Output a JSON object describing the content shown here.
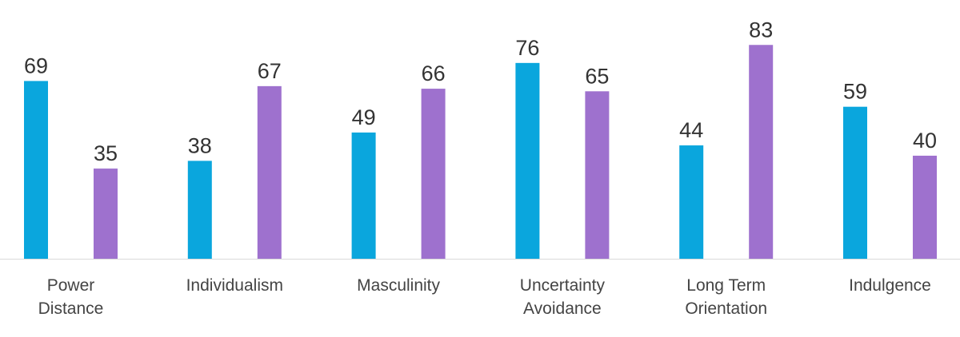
{
  "chart_data": {
    "type": "bar",
    "categories": [
      [
        "Power",
        "Distance"
      ],
      [
        "Individualism"
      ],
      [
        "Masculinity"
      ],
      [
        "Uncertainty",
        "Avoidance"
      ],
      [
        "Long Term",
        "Orientation"
      ],
      [
        "Indulgence"
      ]
    ],
    "series": [
      {
        "values": [
          69,
          38,
          49,
          76,
          44,
          59
        ]
      },
      {
        "values": [
          35,
          67,
          66,
          65,
          83,
          40
        ]
      }
    ],
    "title": "",
    "xlabel": "",
    "ylabel": "",
    "ylim": [
      0,
      93
    ],
    "grid": false,
    "legend": "none",
    "data_labels": true,
    "colors": [
      "#0AA6DD",
      "#9E71CE"
    ],
    "axis_color": "#D9D9D9"
  }
}
